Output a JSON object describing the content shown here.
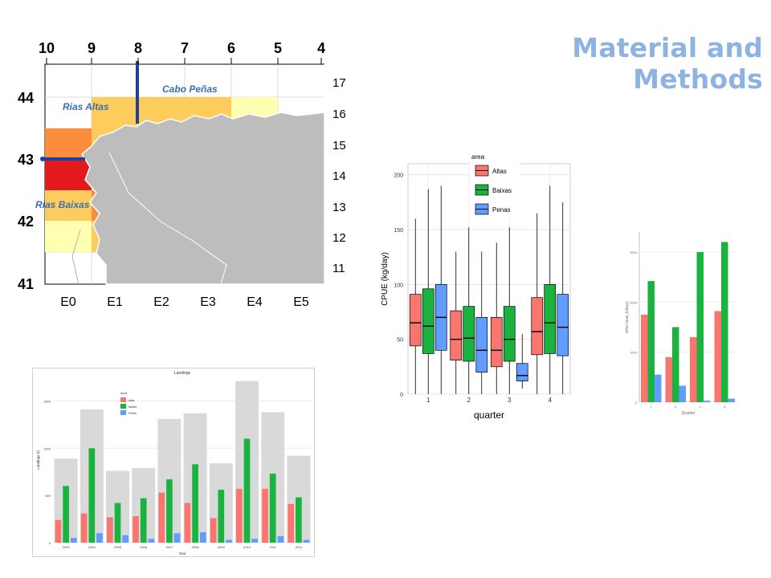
{
  "slide": {
    "title": "Material and Methods"
  },
  "colors": {
    "altas": "#f8766d",
    "baixas": "#1ab340",
    "penas": "#619cff",
    "title": "#8db3e2",
    "landings_total": "#d9d9d9",
    "cell_low": "#ffffb2",
    "cell_mid": "#fecc5c",
    "cell_high": "#fd8d3c",
    "cell_max": "#e31a1c",
    "land": "#bdbdbd",
    "marker": "#1f3ea3"
  },
  "map": {
    "top_axis_labels": [
      "10",
      "9",
      "8",
      "7",
      "6",
      "5",
      "4"
    ],
    "left_axis_labels": [
      "44",
      "43",
      "42",
      "41"
    ],
    "right_axis_labels": [
      "17",
      "16",
      "15",
      "14",
      "13",
      "12",
      "11"
    ],
    "bottom_axis_labels": [
      "E0",
      "E1",
      "E2",
      "E3",
      "E4",
      "E5"
    ],
    "place_labels": {
      "cabo_penas": "Cabo Peñas",
      "rias_altas": "Rias Altas",
      "rias_baixas": "Rias Baixas"
    },
    "icon": "map-of-galicia-icon"
  },
  "chart_data": [
    {
      "id": "cpue_boxplot",
      "type": "box",
      "title": "",
      "xlabel": "quarter",
      "ylabel": "CPUE (kg/day)",
      "legend_title": "area",
      "legend_position": "top-center",
      "categories": [
        "1",
        "2",
        "3",
        "4"
      ],
      "ylim": [
        0,
        210
      ],
      "yticks": [
        "0",
        "50",
        "100",
        "150",
        "200"
      ],
      "grid": true,
      "series": [
        {
          "name": "Altas",
          "boxes": [
            {
              "min": 0,
              "q1": 44,
              "median": 65,
              "q3": 91,
              "max": 160
            },
            {
              "min": 0,
              "q1": 31,
              "median": 50,
              "q3": 76,
              "max": 130
            },
            {
              "min": 0,
              "q1": 25,
              "median": 40,
              "q3": 70,
              "max": 138
            },
            {
              "min": 0,
              "q1": 36,
              "median": 57,
              "q3": 88,
              "max": 165
            }
          ]
        },
        {
          "name": "Baixas",
          "boxes": [
            {
              "min": 0,
              "q1": 37,
              "median": 62,
              "q3": 96,
              "max": 187
            },
            {
              "min": 0,
              "q1": 30,
              "median": 51,
              "q3": 80,
              "max": 152
            },
            {
              "min": 0,
              "q1": 30,
              "median": 50,
              "q3": 80,
              "max": 152
            },
            {
              "min": 0,
              "q1": 37,
              "median": 65,
              "q3": 100,
              "max": 190
            }
          ]
        },
        {
          "name": "Penas",
          "boxes": [
            {
              "min": 0,
              "q1": 40,
              "median": 70,
              "q3": 100,
              "max": 190
            },
            {
              "min": 0,
              "q1": 20,
              "median": 40,
              "q3": 70,
              "max": 130
            },
            {
              "min": 5,
              "q1": 12,
              "median": 17,
              "q3": 28,
              "max": 55
            },
            {
              "min": 0,
              "q1": 35,
              "median": 61,
              "q3": 91,
              "max": 175
            }
          ]
        }
      ]
    },
    {
      "id": "effort_bar",
      "type": "bar",
      "title": "",
      "xlabel": "Quarter",
      "ylabel": "Effort (man_h/days)",
      "categories": [
        "1",
        "2",
        "3",
        "4"
      ],
      "ylim": [
        0,
        3400
      ],
      "yticks": [
        "0",
        "1000",
        "2000",
        "3000"
      ],
      "grid": true,
      "series": [
        {
          "name": "altas",
          "values": [
            1750,
            900,
            1300,
            1820
          ]
        },
        {
          "name": "baixas",
          "values": [
            2420,
            1500,
            3000,
            3200
          ]
        },
        {
          "name": "penas",
          "values": [
            550,
            330,
            30,
            70
          ]
        }
      ]
    },
    {
      "id": "landings_bar",
      "type": "bar",
      "title": "Landings",
      "xlabel": "Year",
      "ylabel": "Landings (t)",
      "legend_title": "area",
      "legend_position": "top-left",
      "categories": [
        "2003",
        "2004",
        "2005",
        "2006",
        "2007",
        "2008",
        "2009",
        "2010",
        "2011",
        "2012"
      ],
      "ylim": [
        0,
        1750
      ],
      "yticks": [
        "0",
        "500",
        "1000",
        "1500"
      ],
      "grid": true,
      "total": [
        890,
        1410,
        760,
        790,
        1310,
        1370,
        840,
        1710,
        1380,
        920
      ],
      "series": [
        {
          "name": "altas",
          "values": [
            240,
            310,
            270,
            280,
            530,
            420,
            260,
            570,
            570,
            410
          ]
        },
        {
          "name": "baixas",
          "values": [
            600,
            1000,
            420,
            470,
            670,
            830,
            560,
            1100,
            730,
            480
          ]
        },
        {
          "name": "Peñas",
          "values": [
            50,
            100,
            80,
            40,
            100,
            110,
            30,
            40,
            70,
            30
          ]
        }
      ]
    }
  ]
}
